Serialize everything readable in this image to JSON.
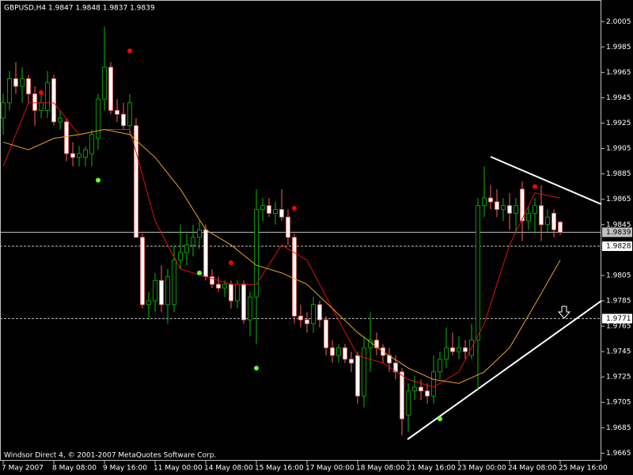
{
  "chart_data": {
    "type": "candlestick",
    "title": "GBPUSD,H4 1.9847 1.9848 1.9837 1.9839",
    "footer": "Windsor Direct 4, © 2001-2007 MetaQuotes Software Corp.",
    "categories": [
      "7 May 2007",
      null,
      null,
      null,
      null,
      null,
      null,
      null,
      "8 May 08:00",
      null,
      null,
      null,
      null,
      null,
      null,
      null,
      "9 May 16:00",
      null,
      null,
      null,
      null,
      null,
      null,
      null,
      "11 May 00:00",
      null,
      null,
      null,
      null,
      null,
      null,
      null,
      "14 May 08:00",
      null,
      null,
      null,
      null,
      null,
      null,
      null,
      "15 May 16:00",
      null,
      null,
      null,
      null,
      null,
      null,
      null,
      "17 May 00:00",
      null,
      null,
      null,
      null,
      null,
      null,
      null,
      "18 May 08:00",
      null,
      null,
      null,
      null,
      null,
      null,
      null,
      "21 May 16:00",
      null,
      null,
      null,
      null,
      null,
      null,
      null,
      "23 May 00:00",
      null,
      null,
      null,
      null,
      null,
      null,
      null,
      "24 May 08:00",
      null,
      null,
      null,
      null,
      null,
      null,
      null,
      "25 May 16:00"
    ],
    "candles": [
      [
        1.9929,
        1.9948,
        1.9916,
        1.9941
      ],
      [
        1.9941,
        1.9966,
        1.9935,
        1.996
      ],
      [
        1.996,
        1.9973,
        1.9948,
        1.9954
      ],
      [
        1.9954,
        1.9969,
        1.9941,
        1.996
      ],
      [
        1.996,
        1.9963,
        1.9941,
        1.9948
      ],
      [
        1.9948,
        1.9954,
        1.9923,
        1.9935
      ],
      [
        1.9935,
        1.9948,
        1.9929,
        1.9941
      ],
      [
        1.9935,
        1.9966,
        1.9929,
        1.9957
      ],
      [
        1.996,
        1.9963,
        1.9923,
        1.9926
      ],
      [
        1.9926,
        1.9935,
        1.992,
        1.9929
      ],
      [
        1.9926,
        1.9929,
        1.9895,
        1.9901
      ],
      [
        1.9901,
        1.991,
        1.9891,
        1.9898
      ],
      [
        1.9898,
        1.9907,
        1.9891,
        1.9901
      ],
      [
        1.9898,
        1.9907,
        1.9891,
        1.9904
      ],
      [
        1.9901,
        1.992,
        1.9891,
        1.9916
      ],
      [
        1.9913,
        1.9948,
        1.9904,
        1.9944
      ],
      [
        1.9944,
        2.0001,
        1.9935,
        1.9969
      ],
      [
        1.9969,
        1.9973,
        1.9932,
        1.9935
      ],
      [
        1.9935,
        1.9944,
        1.9926,
        1.9932
      ],
      [
        1.9932,
        1.9941,
        1.992,
        1.9923
      ],
      [
        1.9923,
        1.9948,
        1.9916,
        1.9941
      ],
      [
        1.9923,
        1.9929,
        1.9835,
        1.9835
      ],
      [
        1.9835,
        1.9838,
        1.9779,
        1.9782
      ],
      [
        1.9782,
        1.9792,
        1.977,
        1.9785
      ],
      [
        1.9785,
        1.9807,
        1.9776,
        1.9801
      ],
      [
        1.9801,
        1.9813,
        1.9776,
        1.9782
      ],
      [
        1.9782,
        1.981,
        1.9767,
        1.9804
      ],
      [
        1.9782,
        1.9829,
        1.9776,
        1.9817
      ],
      [
        1.9817,
        1.9845,
        1.981,
        1.9823
      ],
      [
        1.9823,
        1.9838,
        1.9813,
        1.9829
      ],
      [
        1.9829,
        1.9845,
        1.982,
        1.9835
      ],
      [
        1.9835,
        1.9848,
        1.9826,
        1.9841
      ],
      [
        1.9841,
        1.9845,
        1.9801,
        1.9804
      ],
      [
        1.9804,
        1.981,
        1.9795,
        1.9798
      ],
      [
        1.9798,
        1.9804,
        1.9792,
        1.9795
      ],
      [
        1.9795,
        1.9801,
        1.9788,
        1.9798
      ],
      [
        1.9798,
        1.9801,
        1.9779,
        1.9785
      ],
      [
        1.9785,
        1.9801,
        1.9779,
        1.9798
      ],
      [
        1.9798,
        1.9801,
        1.9767,
        1.977
      ],
      [
        1.977,
        1.9792,
        1.9757,
        1.9788
      ],
      [
        1.9788,
        1.9873,
        1.9751,
        1.9857
      ],
      [
        1.9857,
        1.9866,
        1.9848,
        1.986
      ],
      [
        1.986,
        1.9866,
        1.9851,
        1.9854
      ],
      [
        1.9854,
        1.9863,
        1.9845,
        1.9857
      ],
      [
        1.9857,
        1.9873,
        1.9848,
        1.9851
      ],
      [
        1.9851,
        1.9857,
        1.9829,
        1.9835
      ],
      [
        1.9835,
        1.9838,
        1.9767,
        1.9773
      ],
      [
        1.9773,
        1.9782,
        1.9764,
        1.977
      ],
      [
        1.977,
        1.9776,
        1.976,
        1.9767
      ],
      [
        1.9767,
        1.9788,
        1.976,
        1.9782
      ],
      [
        1.9782,
        1.9785,
        1.9764,
        1.977
      ],
      [
        1.977,
        1.9773,
        1.9742,
        1.9748
      ],
      [
        1.9748,
        1.9754,
        1.9736,
        1.9742
      ],
      [
        1.9742,
        1.9751,
        1.9736,
        1.9748
      ],
      [
        1.9748,
        1.9751,
        1.9736,
        1.9739
      ],
      [
        1.9739,
        1.9745,
        1.9729,
        1.9736
      ],
      [
        1.9742,
        1.9745,
        1.9704,
        1.971
      ],
      [
        1.971,
        1.9757,
        1.9701,
        1.9748
      ],
      [
        1.9748,
        1.9776,
        1.9729,
        1.9754
      ],
      [
        1.9754,
        1.976,
        1.9742,
        1.9748
      ],
      [
        1.9748,
        1.9751,
        1.9736,
        1.9742
      ],
      [
        1.9742,
        1.9748,
        1.9729,
        1.9736
      ],
      [
        1.9736,
        1.9742,
        1.9723,
        1.9729
      ],
      [
        1.9729,
        1.9732,
        1.9679,
        1.9692
      ],
      [
        1.9695,
        1.972,
        1.9682,
        1.9714
      ],
      [
        1.9714,
        1.9726,
        1.9707,
        1.9717
      ],
      [
        1.9717,
        1.9723,
        1.9707,
        1.9714
      ],
      [
        1.9714,
        1.972,
        1.9704,
        1.971
      ],
      [
        1.971,
        1.9742,
        1.9704,
        1.9729
      ],
      [
        1.9729,
        1.9745,
        1.9723,
        1.9739
      ],
      [
        1.9739,
        1.9764,
        1.9732,
        1.9748
      ],
      [
        1.9748,
        1.976,
        1.9742,
        1.9745
      ],
      [
        1.9745,
        1.9757,
        1.9739,
        1.9748
      ],
      [
        1.9748,
        1.9754,
        1.9739,
        1.9745
      ],
      [
        1.9742,
        1.9767,
        1.9739,
        1.9754
      ],
      [
        1.9754,
        1.9866,
        1.9714,
        1.986
      ],
      [
        1.986,
        1.9891,
        1.9851,
        1.9866
      ],
      [
        1.9866,
        1.9876,
        1.9857,
        1.9863
      ],
      [
        1.9863,
        1.9873,
        1.9851,
        1.9857
      ],
      [
        1.9857,
        1.9866,
        1.9848,
        1.986
      ],
      [
        1.986,
        1.987,
        1.9841,
        1.9854
      ],
      [
        1.9854,
        1.9866,
        1.9838,
        1.986
      ],
      [
        1.9873,
        1.9879,
        1.9832,
        1.9848
      ],
      [
        1.9848,
        1.986,
        1.9841,
        1.9854
      ],
      [
        1.9854,
        1.9866,
        1.9838,
        1.986
      ],
      [
        1.986,
        1.9876,
        1.9832,
        1.9845
      ],
      [
        1.9845,
        1.9857,
        1.9838,
        1.9851
      ],
      [
        1.9854,
        1.9857,
        1.9835,
        1.9841
      ],
      [
        1.9847,
        1.9848,
        1.9837,
        1.9839
      ]
    ],
    "bull_color": "#00c000",
    "bear_color": "#ffffff",
    "lines": [
      {
        "color": "#e01010",
        "x": [
          0,
          4,
          8,
          12,
          16,
          20,
          24,
          28,
          32,
          36,
          40,
          44,
          48,
          52,
          56,
          60,
          64,
          68,
          72,
          76,
          80,
          84,
          88
        ],
        "values": [
          1.9891,
          1.9941,
          1.9941,
          1.9916,
          1.992,
          1.992,
          1.9848,
          1.981,
          1.9804,
          1.9798,
          1.9798,
          1.9829,
          1.9817,
          1.9779,
          1.9742,
          1.9736,
          1.9723,
          1.9717,
          1.9729,
          1.9767,
          1.9829,
          1.987,
          1.9866
        ]
      },
      {
        "color": "#f0a020",
        "x": [
          0,
          4,
          8,
          12,
          16,
          20,
          24,
          28,
          32,
          36,
          40,
          44,
          48,
          52,
          56,
          60,
          64,
          68,
          72,
          76,
          80,
          84,
          88
        ],
        "values": [
          1.991,
          1.9904,
          1.9913,
          1.9916,
          1.992,
          1.9916,
          1.9898,
          1.9873,
          1.9841,
          1.9829,
          1.9813,
          1.9807,
          1.9798,
          1.9779,
          1.976,
          1.9745,
          1.9732,
          1.9723,
          1.972,
          1.9729,
          1.9748,
          1.9782,
          1.9817
        ]
      }
    ],
    "dots": [
      {
        "color": "#ff0000",
        "x": [
          6,
          20,
          36,
          46,
          84
        ],
        "values": [
          1.9949,
          1.9982,
          1.9815,
          1.9858,
          1.9875
        ]
      },
      {
        "color": "#66ff33",
        "x": [
          15,
          31,
          40,
          69
        ],
        "values": [
          1.988,
          1.9807,
          1.9732,
          1.9692
        ]
      }
    ],
    "levels": [
      {
        "value": 1.9839,
        "style": "solid"
      },
      {
        "value": 1.9828,
        "style": "dashed"
      },
      {
        "value": 1.9771,
        "style": "dashed"
      }
    ],
    "ylim": [
      1.9659,
      2.0022
    ],
    "yticks": [
      2.0005,
      1.9985,
      1.9965,
      1.9945,
      1.9925,
      1.9905,
      1.9885,
      1.9865,
      1.9845,
      1.9805,
      1.9785,
      1.9765,
      1.9745,
      1.9725,
      1.9705,
      1.9685,
      1.9665
    ]
  }
}
